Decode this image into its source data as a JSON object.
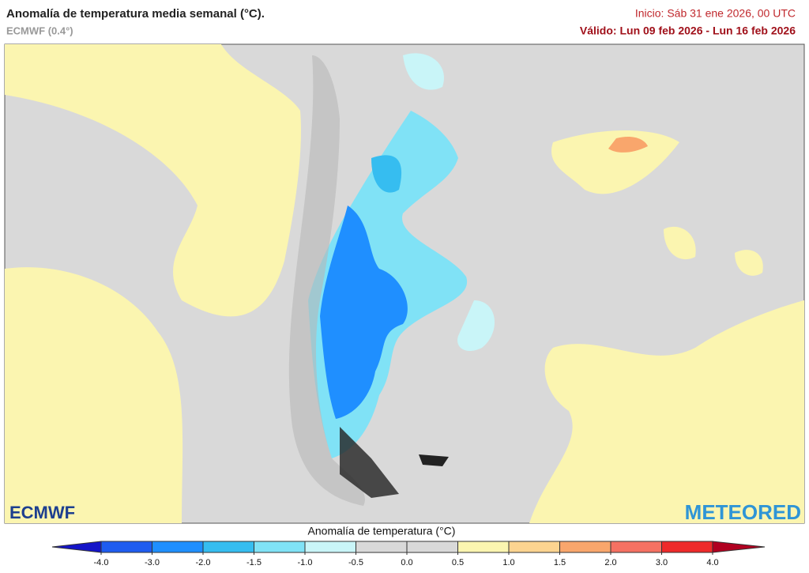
{
  "header": {
    "title": "Anomalía de temperatura media semanal (°C).",
    "model": "ECMWF (0.4°)",
    "init": "Inicio: Sáb 31 ene 2026, 00 UTC",
    "valid": "Válido: Lun 09 feb 2026 - Lun 16 feb 2026"
  },
  "logos": {
    "left": "ECMWF",
    "right": "METEORED"
  },
  "colorbar": {
    "label": "Anomalía de temperatura (°C)",
    "ticks": [
      {
        "value": -4,
        "label": "-4.0"
      },
      {
        "value": -3,
        "label": "-3.0"
      },
      {
        "value": -2,
        "label": "-2.0"
      },
      {
        "value": -1.5,
        "label": "-1.5"
      },
      {
        "value": -1,
        "label": "-1.0"
      },
      {
        "value": -0.5,
        "label": "-0.5"
      },
      {
        "value": 0,
        "label": "0.0"
      },
      {
        "value": 0.5,
        "label": "0.5"
      },
      {
        "value": 1,
        "label": "1.0"
      },
      {
        "value": 1.5,
        "label": "1.5"
      },
      {
        "value": 2,
        "label": "2.0"
      },
      {
        "value": 3,
        "label": "3.0"
      },
      {
        "value": 4,
        "label": "4.0"
      }
    ],
    "colors": [
      "#1414c8",
      "#1e5cf0",
      "#1f8fff",
      "#36bdf0",
      "#80e2f6",
      "#c9f5f8",
      "#d9d9d9",
      "#d9d9d9",
      "#fbf5b0",
      "#fcd490",
      "#f9a66c",
      "#f57162",
      "#ee2a2a",
      "#b00020"
    ]
  }
}
